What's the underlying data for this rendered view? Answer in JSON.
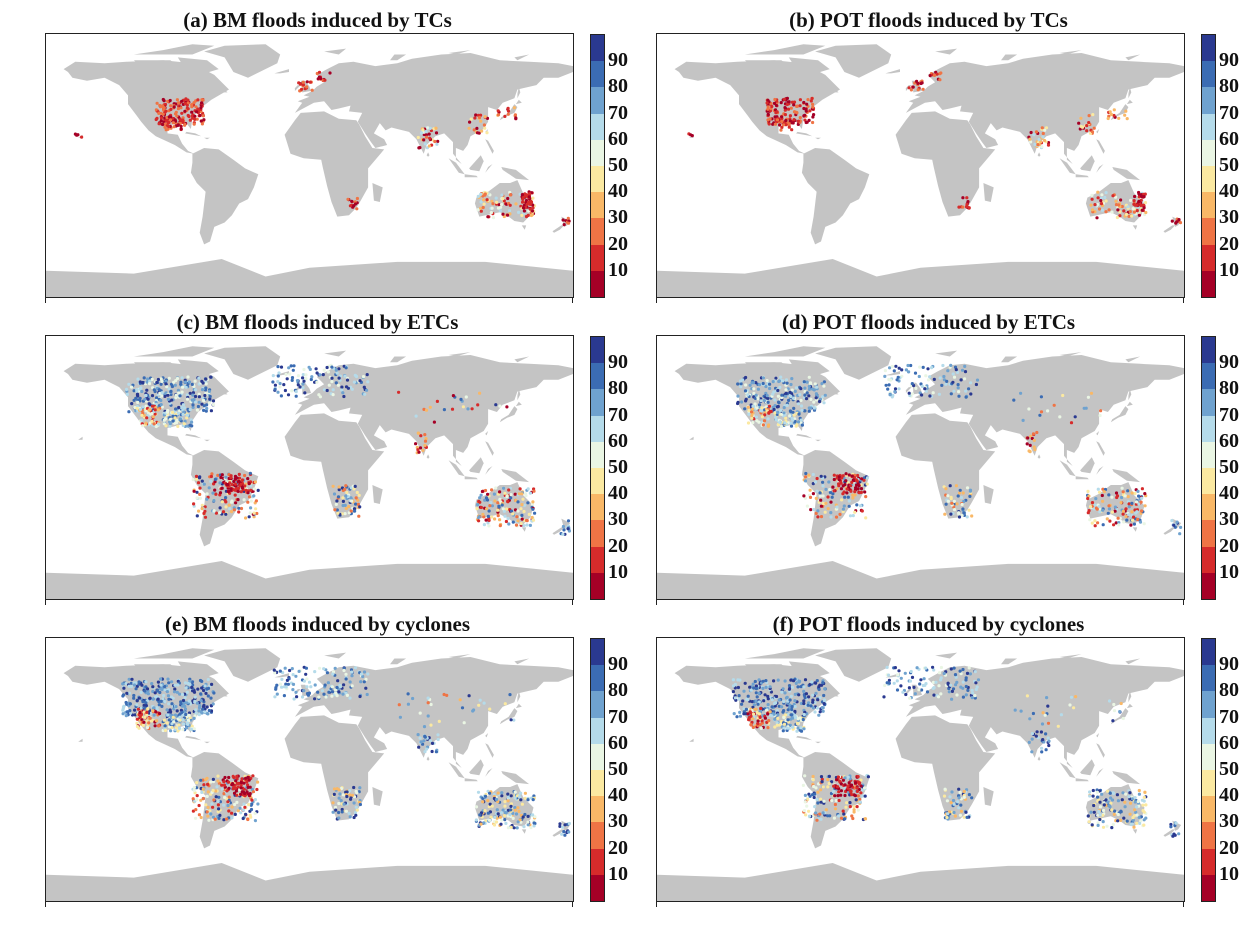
{
  "panels": [
    {
      "id": "a",
      "title": "(a) BM floods induced by TCs",
      "type": "TC"
    },
    {
      "id": "b",
      "title": "(b) POT floods induced by TCs",
      "type": "TC"
    },
    {
      "id": "c",
      "title": "(c) BM floods induced by ETCs",
      "type": "ETC"
    },
    {
      "id": "d",
      "title": "(d) POT floods induced by ETCs",
      "type": "ETC"
    },
    {
      "id": "e",
      "title": "(e) BM floods induced by cyclones",
      "type": "ALL"
    },
    {
      "id": "f",
      "title": "(f) POT floods induced by cyclones",
      "type": "ALL"
    }
  ],
  "colorbar": {
    "labels": [
      "90",
      "80",
      "70",
      "60",
      "50",
      "40",
      "30",
      "20",
      "10"
    ],
    "colors": [
      "#2a3990",
      "#3b6cb3",
      "#6fa2cf",
      "#b5dbea",
      "#eaf6e4",
      "#fbe9a1",
      "#f9b867",
      "#ef7445",
      "#d62b2b",
      "#a50026"
    ]
  },
  "colors": {
    "land": "#c4c4c4",
    "frame": "#222222"
  }
}
